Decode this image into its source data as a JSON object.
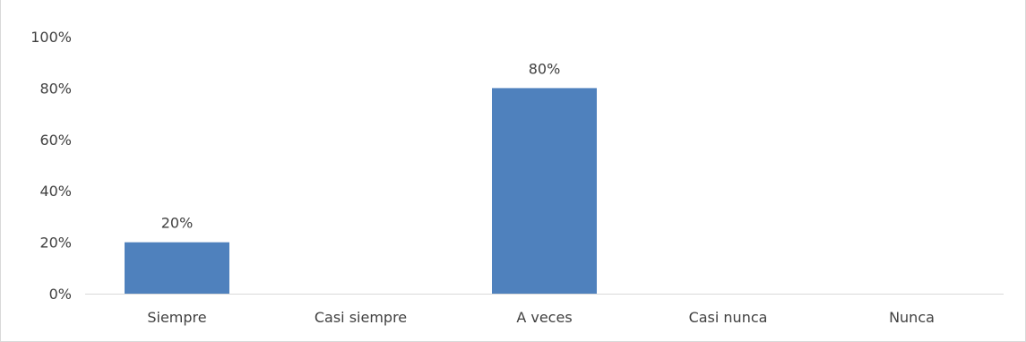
{
  "chart_data": {
    "type": "bar",
    "categories": [
      "Siempre",
      "Casi siempre",
      "A veces",
      "Casi nunca",
      "Nunca"
    ],
    "values": [
      20,
      0,
      80,
      0,
      0
    ],
    "data_labels": [
      "20%",
      "",
      "80%",
      "",
      ""
    ],
    "y_ticks": [
      "0%",
      "20%",
      "40%",
      "60%",
      "80%",
      "100%"
    ],
    "ylim": [
      0,
      100
    ],
    "xlabel": "",
    "ylabel": "",
    "grid": false,
    "bar_color": "#4f81bd",
    "axis_color": "#d9d9d9",
    "text_color": "#404040"
  }
}
